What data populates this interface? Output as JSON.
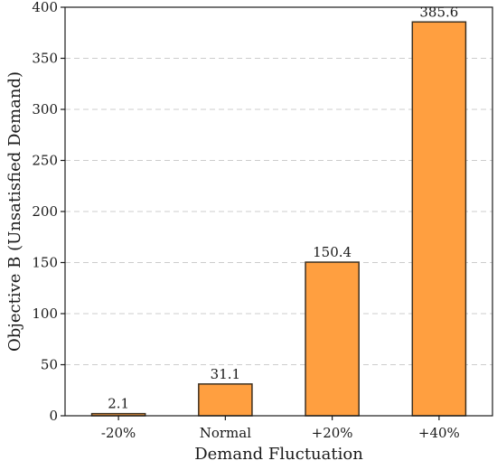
{
  "chart_data": {
    "type": "bar",
    "title": "",
    "xlabel": "Demand Fluctuation",
    "ylabel": "Objective B (Unsatisfied Demand)",
    "categories": [
      "-20%",
      "Normal",
      "+20%",
      "+40%"
    ],
    "values": [
      2.1,
      31.1,
      150.4,
      385.6
    ],
    "data_labels": [
      "2.1",
      "31.1",
      "150.4",
      "385.6"
    ],
    "ylim": [
      0,
      400
    ],
    "yticks": [
      0,
      50,
      100,
      150,
      200,
      250,
      300,
      350,
      400
    ],
    "grid": "horizontal dashed",
    "legend": "none",
    "colors": {
      "bar": "#ff9f40",
      "edge": "#3d3020",
      "grid": "#cccccc",
      "axis": "#1a1a1a"
    }
  }
}
